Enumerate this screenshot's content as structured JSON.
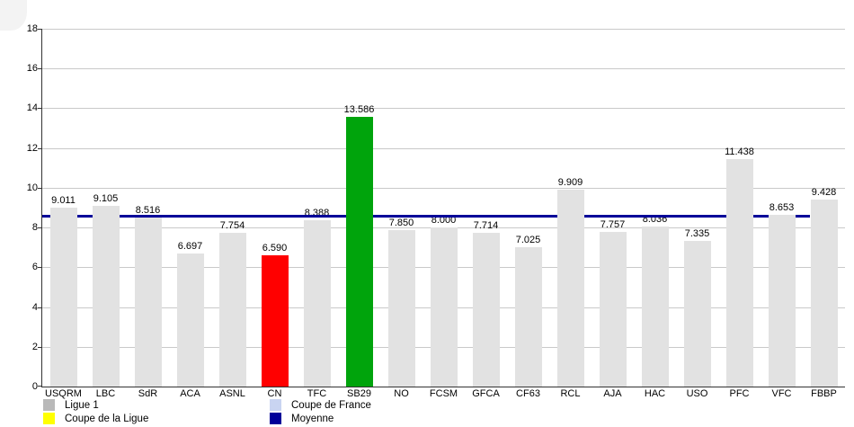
{
  "chart_data": {
    "type": "bar",
    "title": "",
    "xlabel": "",
    "ylabel": "",
    "categories": [
      "USQRM",
      "LBC",
      "SdR",
      "ACA",
      "ASNL",
      "CN",
      "TFC",
      "SB29",
      "NO",
      "FCSM",
      "GFCA",
      "CF63",
      "RCL",
      "AJA",
      "HAC",
      "USO",
      "PFC",
      "VFC",
      "FBBP"
    ],
    "values": [
      9.011,
      9.105,
      8.516,
      6.697,
      7.754,
      6.59,
      8.388,
      13.586,
      7.85,
      8.0,
      7.714,
      7.025,
      9.909,
      7.757,
      8.036,
      7.335,
      11.438,
      8.653,
      9.428
    ],
    "value_label_decimals": 3,
    "ylim": [
      0,
      18
    ],
    "ytick_step": 2,
    "grid": true,
    "bar_default_color": "#e2e2e2",
    "bar_color_overrides": {
      "CN": "#ff0000",
      "SB29": "#00a40c"
    },
    "average_line": {
      "name": "Moyenne",
      "value": 8.568,
      "color": "#000099"
    },
    "legend": {
      "position": "bottom",
      "items": [
        {
          "label": "Ligue 1",
          "color": "#b9b9b9"
        },
        {
          "label": "Coupe de la Ligue",
          "color": "#ffff00"
        },
        {
          "label": "Coupe de France",
          "color": "#c9d4f1"
        },
        {
          "label": "Moyenne",
          "color": "#000099"
        }
      ]
    }
  }
}
